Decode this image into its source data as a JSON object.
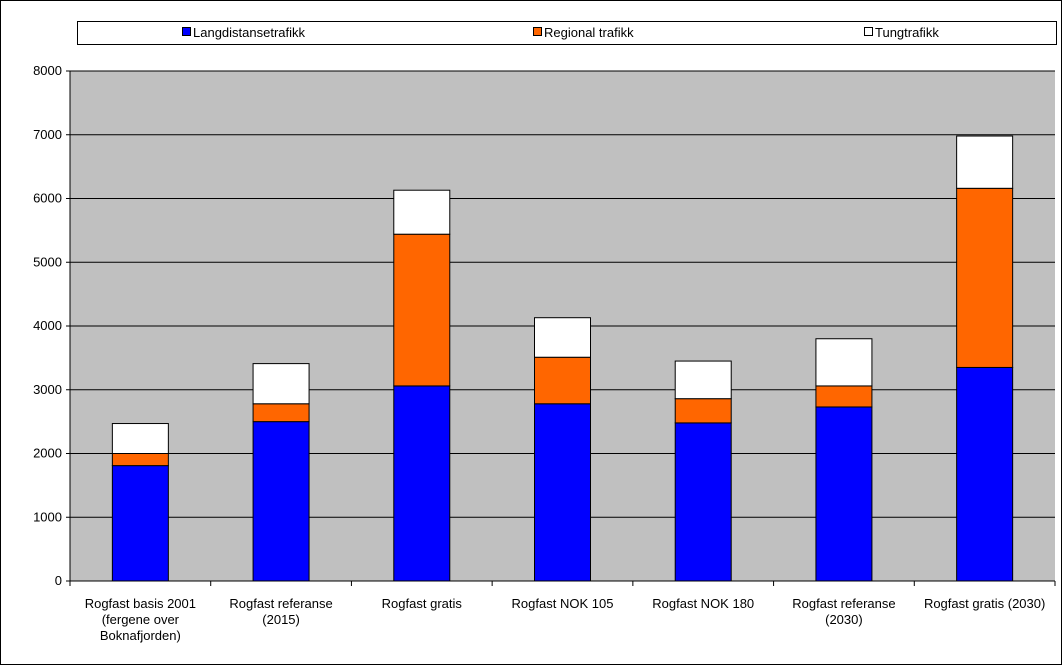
{
  "chart_data": {
    "type": "bar",
    "stacked": true,
    "categories": [
      [
        "Rogfast basis 2001",
        "(fergene over",
        "Boknafjorden)"
      ],
      [
        "Rogfast referanse",
        "(2015)"
      ],
      [
        "Rogfast gratis"
      ],
      [
        "Rogfast NOK 105"
      ],
      [
        "Rogfast NOK 180"
      ],
      [
        "Rogfast referanse",
        "(2030)"
      ],
      [
        "Rogfast gratis (2030)"
      ]
    ],
    "series": [
      {
        "name": "Langdistansetrafikk",
        "color": "#0000FF",
        "values": [
          1810,
          2500,
          3060,
          2780,
          2480,
          2730,
          3350
        ]
      },
      {
        "name": "Regional trafikk",
        "color": "#FF6600",
        "values": [
          190,
          280,
          2380,
          730,
          380,
          330,
          2810
        ]
      },
      {
        "name": "Tungtrafikk",
        "color": "#FFFFFF",
        "values": [
          470,
          630,
          690,
          620,
          590,
          740,
          820
        ]
      }
    ],
    "ylim": [
      0,
      8000
    ],
    "yticks": [
      0,
      1000,
      2000,
      3000,
      4000,
      5000,
      6000,
      7000,
      8000
    ],
    "grid": true,
    "legend_position": "top",
    "plot_background": "#C0C0C0"
  }
}
